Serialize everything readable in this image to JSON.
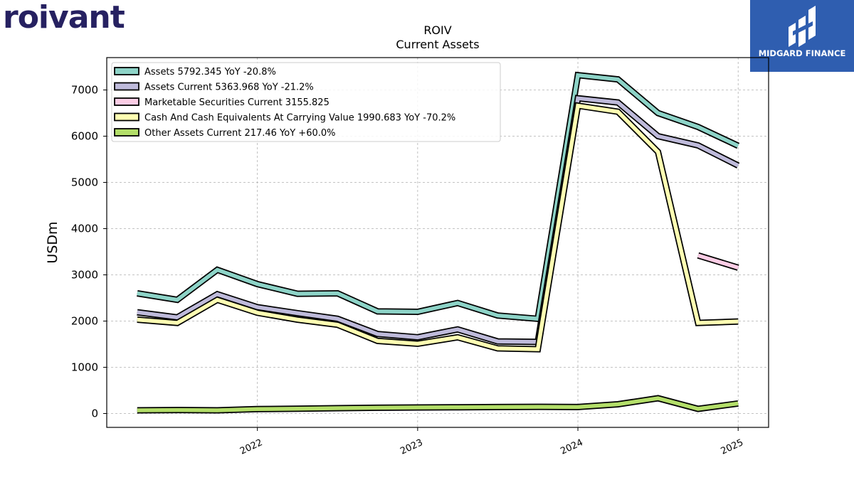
{
  "brand": {
    "logo_text": "roivant"
  },
  "publisher": {
    "name": "MIDGARD FINANCE",
    "logo_icon": "midgard-logo-icon"
  },
  "chart_data": {
    "type": "line",
    "title": "ROIV",
    "subtitle": "Current  Assets",
    "ylabel": "USDm",
    "xlabel": "",
    "ylim": [
      -300,
      7700
    ],
    "yticks": [
      0,
      1000,
      2000,
      3000,
      4000,
      5000,
      6000,
      7000
    ],
    "xlim": [
      2021.06,
      2025.19
    ],
    "xticks": [
      {
        "value": 2022,
        "label": "2022"
      },
      {
        "value": 2023,
        "label": "2023"
      },
      {
        "value": 2024,
        "label": "2024"
      },
      {
        "value": 2025,
        "label": "2025"
      }
    ],
    "grid": true,
    "legend_position": "upper-left",
    "series": [
      {
        "name": "Assets",
        "legend_label": "Assets  5792.345 YoY -20.8%",
        "color": "#8dd3c7",
        "x": [
          2021.25,
          2021.5,
          2021.75,
          2022.0,
          2022.25,
          2022.5,
          2022.75,
          2023.0,
          2023.25,
          2023.5,
          2023.75,
          2024.0,
          2024.25,
          2024.5,
          2024.75,
          2025.0
        ],
        "y": [
          2600,
          2460,
          3110,
          2800,
          2590,
          2600,
          2210,
          2200,
          2390,
          2120,
          2050,
          7320,
          7230,
          6500,
          6200,
          5792.345
        ]
      },
      {
        "name": "Assets Current",
        "legend_label": "Assets Current  5363.968 YoY -21.2%",
        "color": "#bebada",
        "x": [
          2021.25,
          2021.5,
          2021.75,
          2022.0,
          2022.25,
          2022.5,
          2022.75,
          2023.0,
          2023.25,
          2023.5,
          2023.75,
          2024.0,
          2024.25,
          2024.5,
          2024.75,
          2025.0
        ],
        "y": [
          2190,
          2080,
          2580,
          2300,
          2170,
          2050,
          1720,
          1650,
          1820,
          1560,
          1550,
          6820,
          6730,
          6000,
          5800,
          5363.968
        ]
      },
      {
        "name": "Marketable Securities Current",
        "legend_label": "Marketable Securities Current  3155.825",
        "color": "#fccde5",
        "x": [
          2024.75,
          2025.0
        ],
        "y": [
          3420,
          3155.825
        ]
      },
      {
        "name": "Cash And Cash Equivalents At Carrying Value",
        "legend_label": "Cash And Cash Equivalents At Carrying Value  1990.683 YoY -70.2%",
        "color": "#ffffb3",
        "x": [
          2021.25,
          2021.5,
          2021.75,
          2022.0,
          2022.25,
          2022.5,
          2022.75,
          2023.0,
          2023.25,
          2023.5,
          2023.75,
          2024.0,
          2024.25,
          2024.5,
          2024.75,
          2025.0
        ],
        "y": [
          2030,
          1960,
          2460,
          2180,
          2030,
          1920,
          1570,
          1510,
          1650,
          1410,
          1390,
          6660,
          6530,
          5660,
          1960,
          1990.683
        ]
      },
      {
        "name": "Other Assets Current",
        "legend_label": "Other Assets Current  217.46 YoY +60.0%",
        "color": "#b3de69",
        "x": [
          2021.25,
          2021.5,
          2021.75,
          2022.0,
          2022.25,
          2022.5,
          2022.75,
          2023.0,
          2023.25,
          2023.5,
          2023.75,
          2024.0,
          2024.25,
          2024.5,
          2024.75,
          2025.0
        ],
        "y": [
          70,
          75,
          70,
          95,
          105,
          115,
          125,
          130,
          135,
          140,
          145,
          140,
          200,
          330,
          100,
          217.46
        ]
      }
    ]
  }
}
